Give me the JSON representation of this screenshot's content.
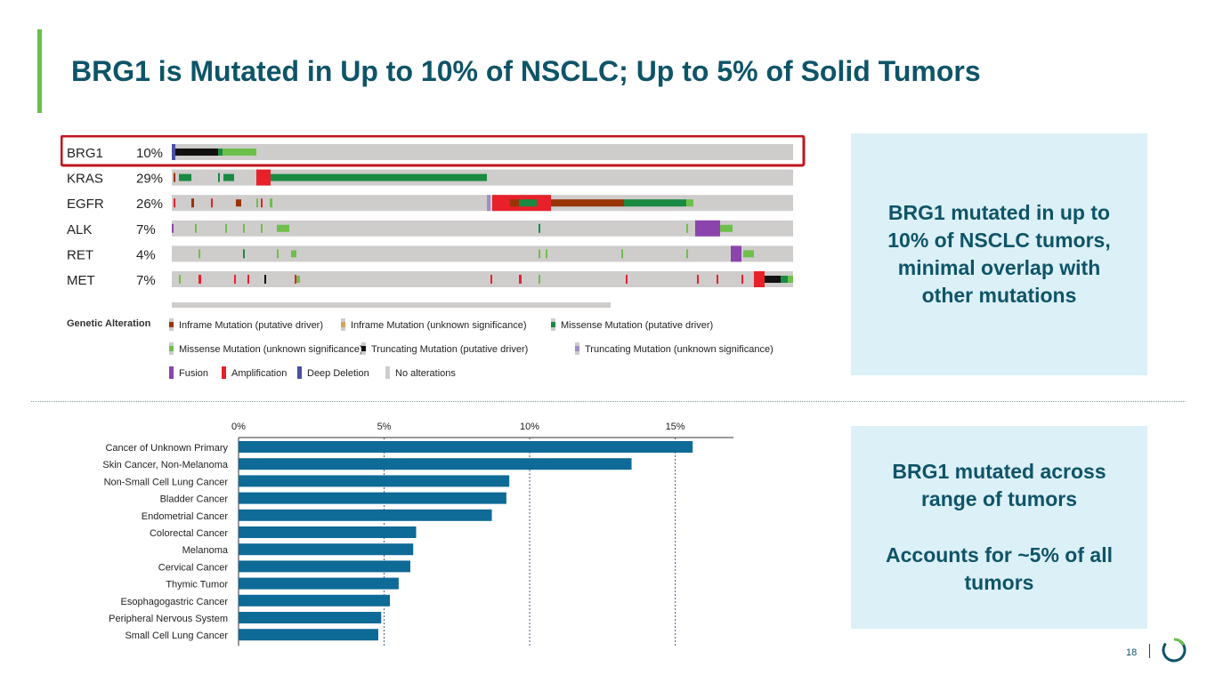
{
  "slide": {
    "title": "BRG1 is Mutated in Up to 10% of NSCLC; Up to 5% of Solid Tumors",
    "box1_text": "BRG1 mutated in up to 10% of NSCLC tumors, minimal overlap with other mutations",
    "box2_line1": "BRG1 mutated across range of tumors",
    "box2_line2": "Accounts for ~5% of all tumors",
    "page_number": "18"
  },
  "colors": {
    "title": "#0e5468",
    "accent": "#6abf4b",
    "box_bg": "#dcf0f7",
    "bar": "#0e6a96",
    "highlight": "#c0161b",
    "track": "#cfcccc",
    "inframe_driver": "#993404",
    "inframe_unknown": "#d4a35b",
    "missense_driver": "#1a8a43",
    "missense_unknown": "#6ebf4b",
    "truncating_driver": "#111111",
    "truncating_unknown": "#9e8fc4",
    "fusion": "#8b44ac",
    "amplification": "#e8202a",
    "deep_deletion": "#4b4fa6",
    "no_alteration": "#cfcccc"
  },
  "chart_data": [
    {
      "type": "oncoprint",
      "title": "",
      "genes": [
        {
          "name": "BRG1",
          "pct": "10%"
        },
        {
          "name": "KRAS",
          "pct": "29%"
        },
        {
          "name": "EGFR",
          "pct": "26%"
        },
        {
          "name": "ALK",
          "pct": "7%"
        },
        {
          "name": "RET",
          "pct": "4%"
        },
        {
          "name": "MET",
          "pct": "7%"
        }
      ],
      "highlighted_gene": "BRG1",
      "legend_title": "Genetic Alteration",
      "legend": [
        {
          "label": "Inframe Mutation (putative driver)",
          "key": "inframe_driver"
        },
        {
          "label": "Inframe Mutation (unknown significance)",
          "key": "inframe_unknown"
        },
        {
          "label": "Missense Mutation (putative driver)",
          "key": "missense_driver"
        },
        {
          "label": "Missense Mutation (unknown significance)",
          "key": "missense_unknown"
        },
        {
          "label": "Truncating Mutation (putative driver)",
          "key": "truncating_driver"
        },
        {
          "label": "Truncating Mutation (unknown significance)",
          "key": "truncating_unknown"
        },
        {
          "label": "Fusion",
          "key": "fusion"
        },
        {
          "label": "Amplification",
          "key": "amplification"
        },
        {
          "label": "Deep Deletion",
          "key": "deep_deletion"
        },
        {
          "label": "No alterations",
          "key": "no_alteration"
        }
      ]
    },
    {
      "type": "bar",
      "orientation": "horizontal",
      "title": "",
      "xlabel": "",
      "ylabel": "",
      "xlim": [
        0,
        17
      ],
      "xticks": [
        0,
        5,
        10,
        15
      ],
      "xtick_labels": [
        "0%",
        "5%",
        "10%",
        "15%"
      ],
      "gridlines": [
        5,
        10,
        15
      ],
      "categories": [
        "Cancer of Unknown Primary",
        "Skin Cancer, Non-Melanoma",
        "Non-Small Cell Lung Cancer",
        "Bladder Cancer",
        "Endometrial Cancer",
        "Colorectal Cancer",
        "Melanoma",
        "Cervical Cancer",
        "Thymic Tumor",
        "Esophagogastric Cancer",
        "Peripheral Nervous System",
        "Small Cell Lung Cancer"
      ],
      "values": [
        15.6,
        13.5,
        9.3,
        9.2,
        8.7,
        6.1,
        6.0,
        5.9,
        5.5,
        5.2,
        4.9,
        4.8
      ]
    }
  ]
}
